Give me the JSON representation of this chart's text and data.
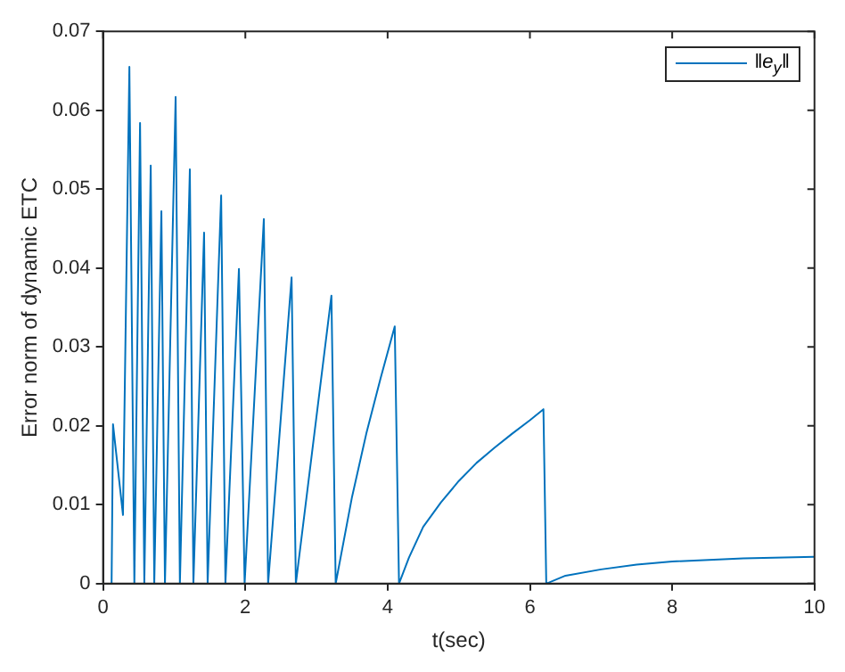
{
  "chart_data": {
    "type": "line",
    "xlabel": "t(sec)",
    "ylabel": "Error norm of dynamic ETC",
    "xlim": [
      0,
      10
    ],
    "xticks": [
      0,
      2,
      4,
      6,
      8,
      10
    ],
    "ylim": [
      0,
      0.07
    ],
    "yticks": [
      0,
      0.01,
      0.02,
      0.03,
      0.04,
      0.05,
      0.06,
      0.07
    ],
    "grid": false,
    "legend": "top right",
    "marker": "none",
    "line_style": "solid",
    "series": [
      {
        "name": "‖e$_{y}$‖",
        "color": "#0072bd",
        "x": [
          0.12,
          0.14,
          0.28,
          0.37,
          0.44,
          0.52,
          0.58,
          0.67,
          0.72,
          0.82,
          0.87,
          1.02,
          1.08,
          1.22,
          1.27,
          1.42,
          1.47,
          1.66,
          1.72,
          1.91,
          1.99,
          2.26,
          2.32,
          2.65,
          2.71,
          3.21,
          3.27,
          3.5,
          3.7,
          3.9,
          4.1,
          4.16,
          4.3,
          4.5,
          4.75,
          5.0,
          5.25,
          5.5,
          5.75,
          6.0,
          6.19,
          6.23,
          6.5,
          7.0,
          7.5,
          8.0,
          9.0,
          10.0
        ],
        "values": [
          0,
          0.0202,
          0.0087,
          0.0655,
          0,
          0.0584,
          0,
          0.053,
          0,
          0.0472,
          0,
          0.0617,
          0,
          0.0525,
          0,
          0.0445,
          0,
          0.0492,
          0,
          0.0399,
          0,
          0.0462,
          0,
          0.0388,
          0,
          0.0365,
          0,
          0.011,
          0.019,
          0.026,
          0.0326,
          0,
          0.0033,
          0.0072,
          0.0103,
          0.013,
          0.0153,
          0.0172,
          0.019,
          0.0207,
          0.0221,
          0,
          0.001,
          0.0018,
          0.0024,
          0.0028,
          0.0032,
          0.0034
        ]
      }
    ]
  }
}
